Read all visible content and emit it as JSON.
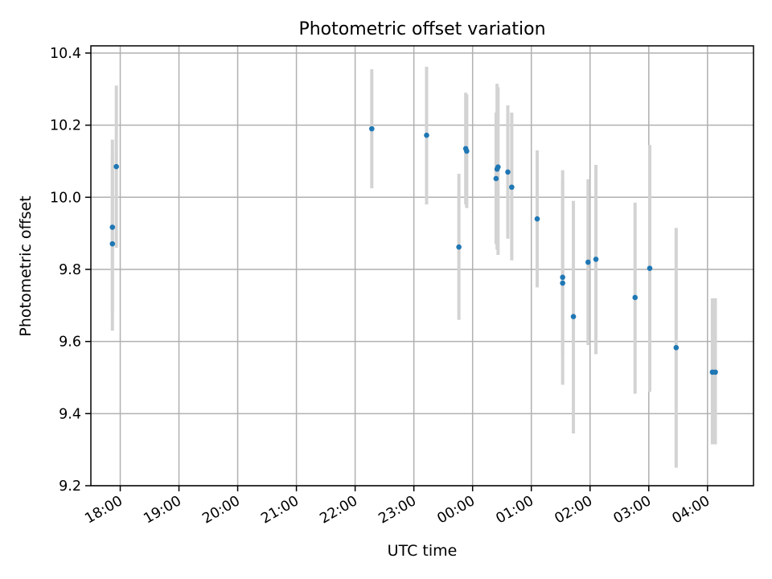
{
  "chart_data": {
    "type": "scatter",
    "title": "Photometric offset variation",
    "xlabel": "UTC time",
    "ylabel": "Photometric offset",
    "grid": true,
    "x_axis": {
      "kind": "time",
      "ticks": [
        "18:00",
        "19:00",
        "20:00",
        "21:00",
        "22:00",
        "23:00",
        "00:00",
        "01:00",
        "02:00",
        "03:00",
        "04:00"
      ],
      "range": [
        "17:30",
        "04:47"
      ]
    },
    "ylim": [
      9.2,
      10.42
    ],
    "y_ticks": [
      "9.2",
      "9.4",
      "9.6",
      "9.8",
      "10.0",
      "10.2",
      "10.4"
    ],
    "colors": {
      "point": "#1f77b4",
      "errorbar": "#d3d3d3",
      "grid": "#b0b0b0"
    },
    "points": [
      {
        "t": "17:52",
        "y": 9.917,
        "lo": 9.68,
        "hi": 10.16
      },
      {
        "t": "17:52",
        "y": 9.871,
        "lo": 9.63,
        "hi": 10.12
      },
      {
        "t": "17:56",
        "y": 10.085,
        "lo": 9.86,
        "hi": 10.31
      },
      {
        "t": "22:17",
        "y": 10.19,
        "lo": 10.025,
        "hi": 10.355
      },
      {
        "t": "23:13",
        "y": 10.172,
        "lo": 9.98,
        "hi": 10.362
      },
      {
        "t": "23:46",
        "y": 9.862,
        "lo": 9.66,
        "hi": 10.065
      },
      {
        "t": "23:53",
        "y": 10.135,
        "lo": 9.98,
        "hi": 10.29
      },
      {
        "t": "23:54",
        "y": 10.128,
        "lo": 9.97,
        "hi": 10.285
      },
      {
        "t": "00:24",
        "y": 10.052,
        "lo": 9.87,
        "hi": 10.235
      },
      {
        "t": "00:25",
        "y": 10.078,
        "lo": 9.855,
        "hi": 10.315
      },
      {
        "t": "00:26",
        "y": 10.084,
        "lo": 9.84,
        "hi": 10.305
      },
      {
        "t": "00:36",
        "y": 10.07,
        "lo": 9.885,
        "hi": 10.255
      },
      {
        "t": "00:40",
        "y": 10.028,
        "lo": 9.825,
        "hi": 10.235
      },
      {
        "t": "01:06",
        "y": 9.94,
        "lo": 9.75,
        "hi": 10.13
      },
      {
        "t": "01:32",
        "y": 9.778,
        "lo": 9.565,
        "hi": 10.075
      },
      {
        "t": "01:32",
        "y": 9.762,
        "lo": 9.48,
        "hi": 10.045
      },
      {
        "t": "01:43",
        "y": 9.669,
        "lo": 9.345,
        "hi": 9.99
      },
      {
        "t": "01:58",
        "y": 9.82,
        "lo": 9.59,
        "hi": 10.05
      },
      {
        "t": "02:06",
        "y": 9.828,
        "lo": 9.565,
        "hi": 10.09
      },
      {
        "t": "02:46",
        "y": 9.722,
        "lo": 9.455,
        "hi": 9.985
      },
      {
        "t": "03:01",
        "y": 9.803,
        "lo": 9.46,
        "hi": 10.145
      },
      {
        "t": "03:28",
        "y": 9.583,
        "lo": 9.25,
        "hi": 9.915
      },
      {
        "t": "04:05",
        "y": 9.515,
        "lo": 9.315,
        "hi": 9.72
      },
      {
        "t": "04:08",
        "y": 9.515,
        "lo": 9.315,
        "hi": 9.72
      }
    ]
  }
}
